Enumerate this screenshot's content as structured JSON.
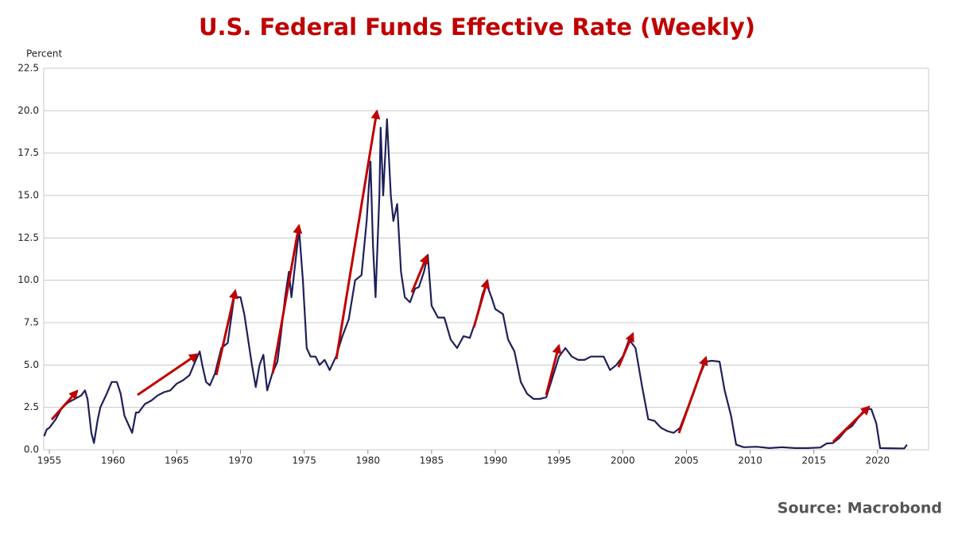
{
  "chart_data": {
    "type": "line",
    "title": "U.S. Federal Funds Effective Rate (Weekly)",
    "y_axis_label": "Percent",
    "source": "Source: Macrobond",
    "color": "#1f1f5a",
    "grid": true,
    "xlim": [
      1954.56,
      2024
    ],
    "ylim": [
      0,
      22.5
    ],
    "xticks": [
      1955,
      1960,
      1965,
      1970,
      1975,
      1980,
      1985,
      1990,
      1995,
      2000,
      2005,
      2010,
      2015,
      2020
    ],
    "yticks": [
      {
        "value": 0,
        "label": "0.0"
      },
      2.5,
      {
        "value": 5,
        "label": "5.0"
      },
      7.5,
      {
        "value": 10,
        "label": "10.0"
      },
      12.5,
      {
        "value": 15,
        "label": "15.0"
      },
      17.5,
      {
        "value": 20,
        "label": "20.0"
      },
      22.5
    ],
    "x": [
      1954.6,
      1954.8,
      1955.0,
      1955.5,
      1956.0,
      1956.5,
      1957.0,
      1957.5,
      1957.8,
      1958.0,
      1958.3,
      1958.5,
      1958.8,
      1959.0,
      1959.5,
      1959.9,
      1960.3,
      1960.6,
      1960.9,
      1961.2,
      1961.5,
      1961.8,
      1962.0,
      1962.5,
      1963.0,
      1963.5,
      1964.0,
      1964.5,
      1965.0,
      1965.5,
      1966.0,
      1966.5,
      1966.8,
      1967.0,
      1967.3,
      1967.6,
      1968.0,
      1968.5,
      1969.0,
      1969.5,
      1970.0,
      1970.3,
      1970.6,
      1970.9,
      1971.2,
      1971.5,
      1971.8,
      1972.1,
      1972.5,
      1972.9,
      1973.2,
      1973.5,
      1973.8,
      1974.0,
      1974.3,
      1974.6,
      1974.9,
      1975.2,
      1975.5,
      1975.9,
      1976.2,
      1976.6,
      1977.0,
      1977.5,
      1978.0,
      1978.5,
      1979.0,
      1979.5,
      1979.9,
      1980.2,
      1980.4,
      1980.6,
      1980.9,
      1981.0,
      1981.2,
      1981.5,
      1981.8,
      1982.0,
      1982.3,
      1982.6,
      1982.9,
      1983.3,
      1983.7,
      1984.0,
      1984.4,
      1984.7,
      1985.0,
      1985.5,
      1986.0,
      1986.5,
      1987.0,
      1987.5,
      1988.0,
      1988.5,
      1989.0,
      1989.3,
      1989.7,
      1990.0,
      1990.6,
      1991.0,
      1991.5,
      1992.0,
      1992.5,
      1993.0,
      1993.5,
      1994.0,
      1994.5,
      1995.0,
      1995.5,
      1996.0,
      1996.5,
      1997.0,
      1997.5,
      1998.0,
      1998.5,
      1999.0,
      1999.5,
      2000.0,
      2000.5,
      2001.0,
      2001.5,
      2002.0,
      2002.5,
      2003.0,
      2003.5,
      2004.0,
      2004.5,
      2005.0,
      2005.5,
      2006.0,
      2006.5,
      2007.0,
      2007.6,
      2008.0,
      2008.5,
      2008.9,
      2009.5,
      2010.5,
      2011.5,
      2012.5,
      2013.5,
      2014.5,
      2015.5,
      2016.0,
      2016.5,
      2017.0,
      2017.5,
      2018.0,
      2018.5,
      2019.0,
      2019.5,
      2019.9,
      2020.2,
      2021.0,
      2021.8,
      2022.1,
      2022.3
    ],
    "values": [
      0.8,
      1.2,
      1.3,
      1.8,
      2.5,
      2.8,
      3.0,
      3.2,
      3.5,
      3.0,
      1.0,
      0.4,
      1.8,
      2.5,
      3.3,
      4.0,
      4.0,
      3.3,
      2.0,
      1.5,
      1.0,
      2.2,
      2.2,
      2.7,
      2.9,
      3.2,
      3.4,
      3.5,
      3.9,
      4.1,
      4.4,
      5.3,
      5.8,
      5.0,
      4.0,
      3.8,
      4.5,
      6.0,
      6.3,
      9.0,
      9.0,
      8.0,
      6.5,
      5.0,
      3.7,
      5.0,
      5.6,
      3.5,
      4.5,
      5.2,
      7.0,
      9.0,
      10.5,
      9.0,
      11.0,
      13.0,
      10.0,
      6.0,
      5.5,
      5.5,
      5.0,
      5.3,
      4.7,
      5.5,
      6.7,
      7.7,
      10.0,
      10.3,
      13.5,
      17.0,
      12.0,
      9.0,
      15.0,
      19.0,
      15.0,
      19.5,
      15.0,
      13.5,
      14.5,
      10.5,
      9.0,
      8.7,
      9.5,
      9.6,
      10.5,
      11.5,
      8.5,
      7.8,
      7.8,
      6.5,
      6.0,
      6.7,
      6.6,
      7.7,
      9.2,
      9.8,
      9.0,
      8.3,
      8.0,
      6.5,
      5.8,
      4.0,
      3.3,
      3.0,
      3.0,
      3.1,
      4.3,
      5.5,
      6.0,
      5.5,
      5.3,
      5.3,
      5.5,
      5.5,
      5.5,
      4.7,
      5.0,
      5.5,
      6.5,
      6.0,
      3.8,
      1.8,
      1.7,
      1.3,
      1.1,
      1.0,
      1.3,
      2.3,
      3.2,
      4.3,
      5.2,
      5.25,
      5.2,
      3.5,
      2.0,
      0.3,
      0.15,
      0.18,
      0.1,
      0.15,
      0.1,
      0.1,
      0.13,
      0.37,
      0.4,
      0.7,
      1.15,
      1.4,
      1.9,
      2.4,
      2.4,
      1.55,
      0.1,
      0.09,
      0.08,
      0.08,
      0.3
    ]
  }
}
